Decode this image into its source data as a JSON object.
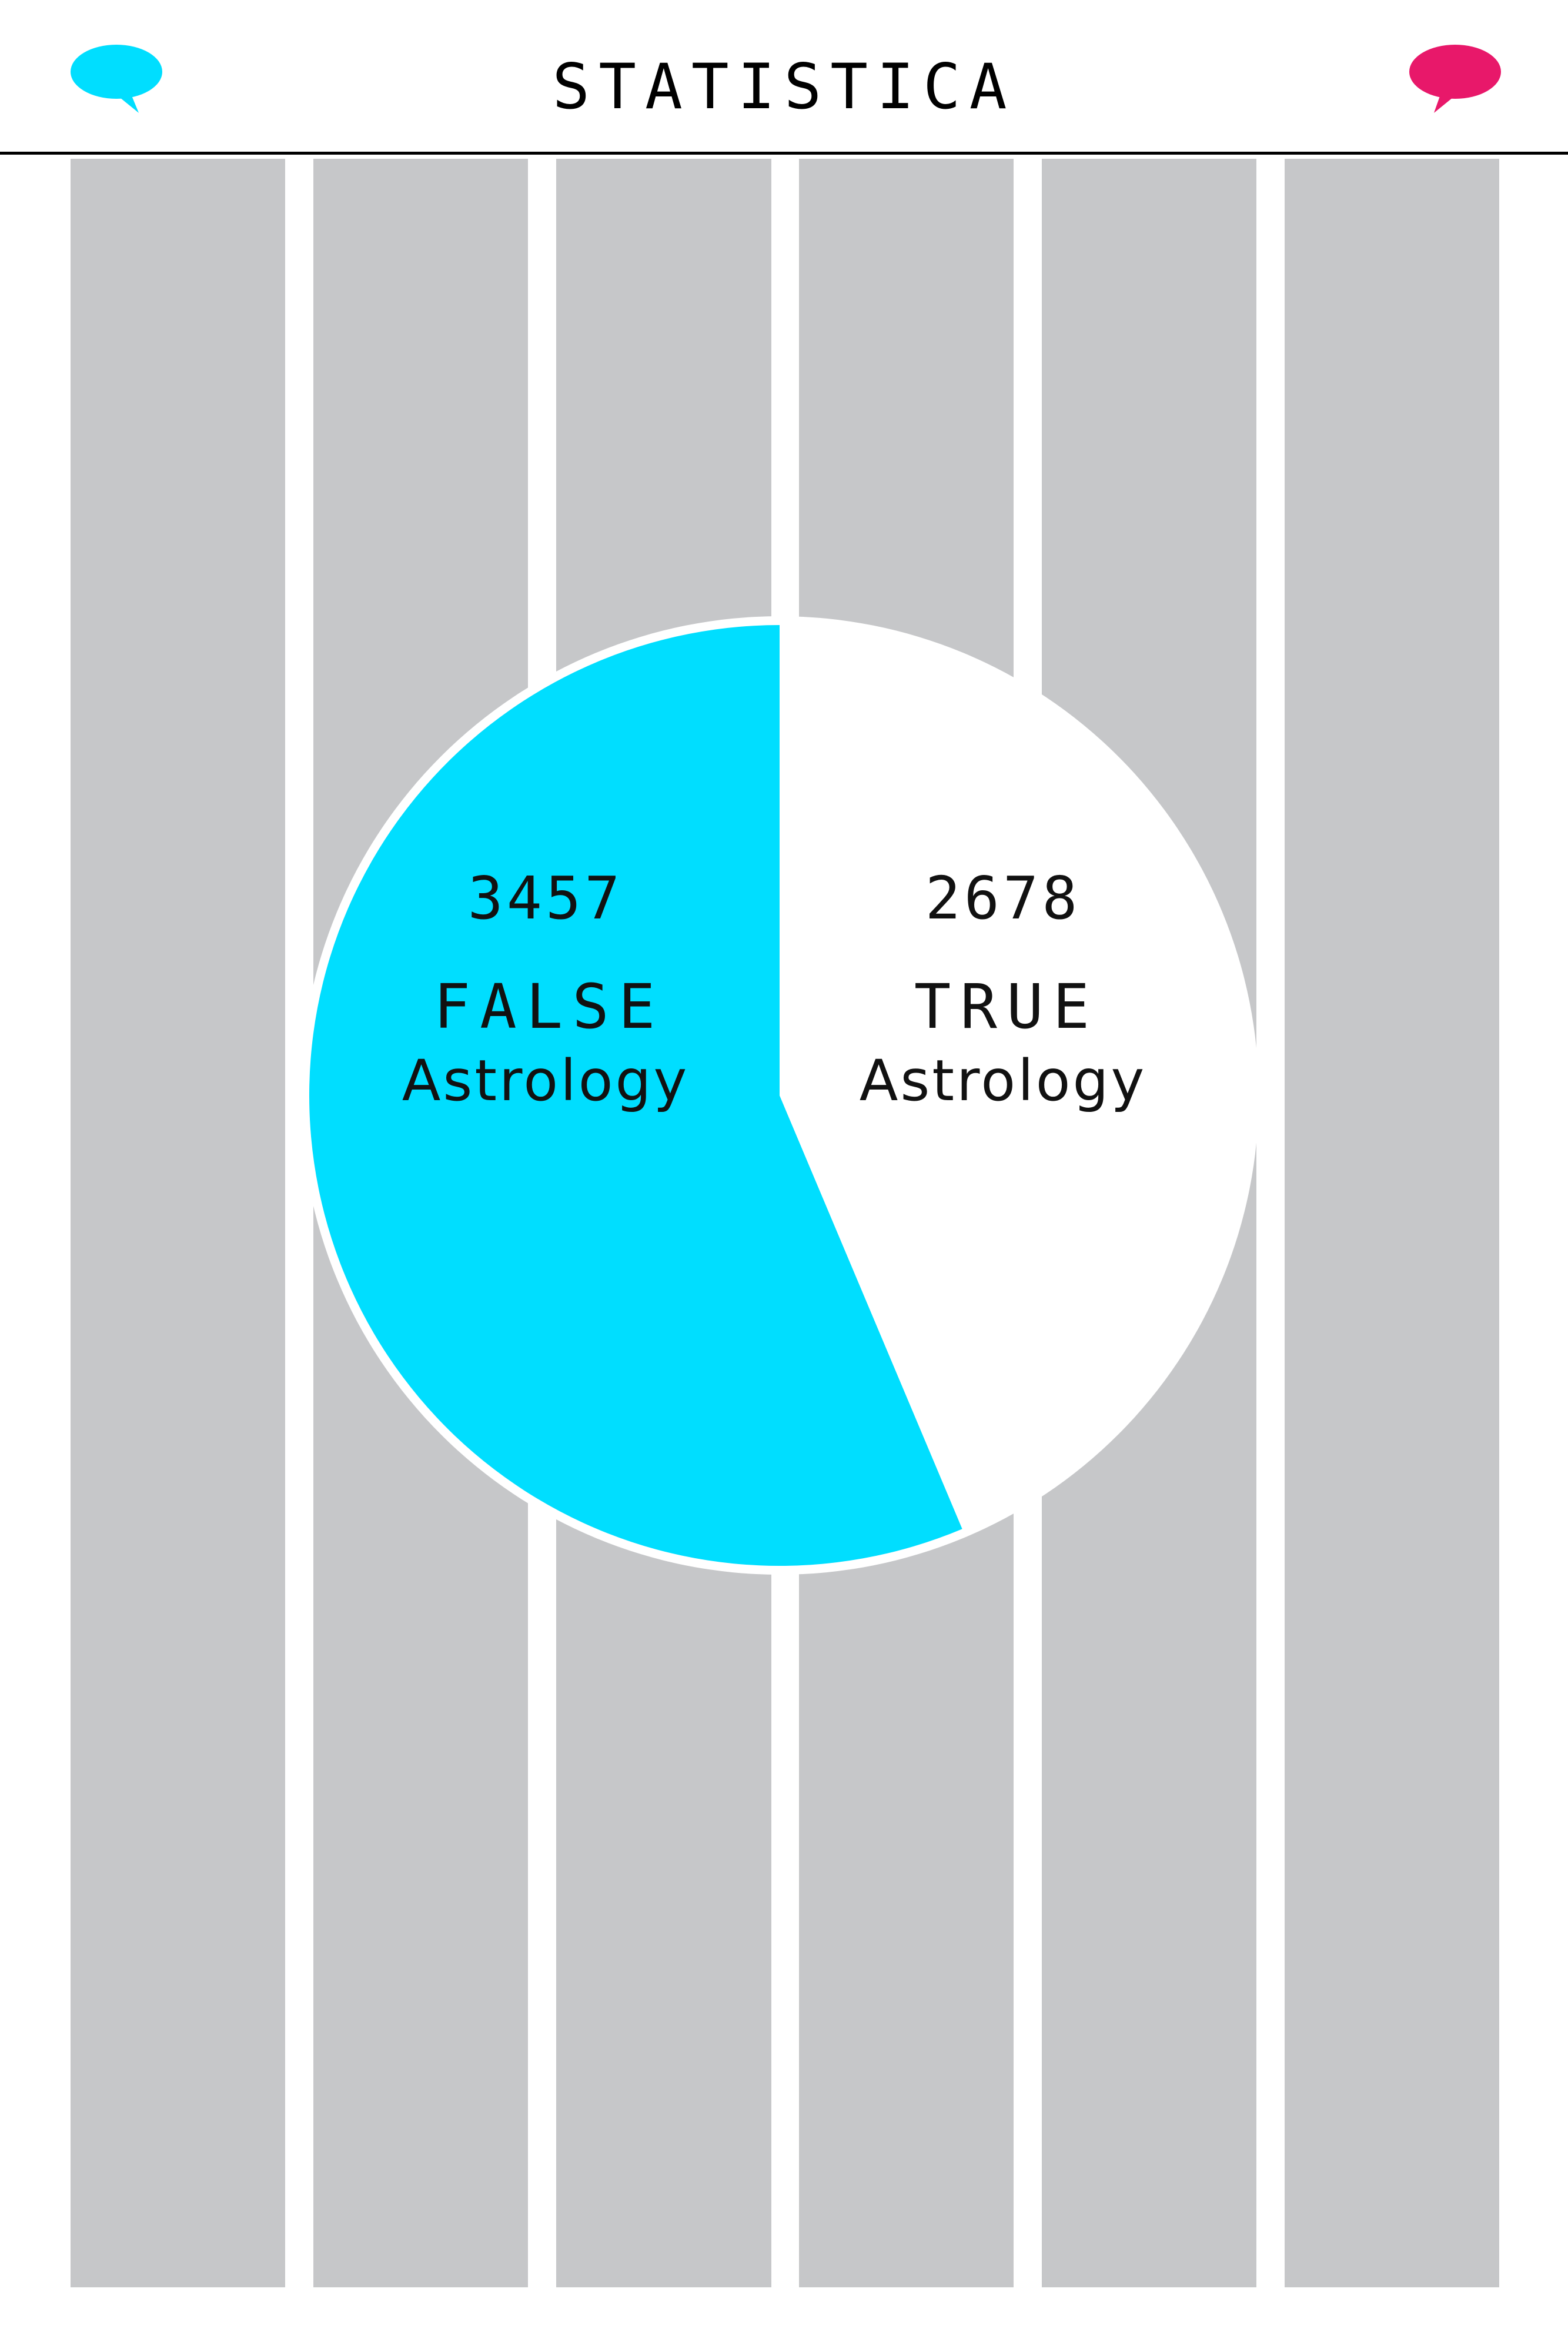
{
  "header": {
    "title": "STATISTICA",
    "left_icon": "speech-bubble-icon",
    "right_icon": "speech-bubble-icon",
    "left_icon_color": "#00deff",
    "right_icon_color": "#e8186a"
  },
  "background": {
    "column_count": 6,
    "column_color": "#c6c7c9"
  },
  "chart_data": {
    "type": "pie",
    "title": "",
    "slices": [
      {
        "label": "FALSE",
        "sublabel": "Astrology",
        "value": 3457,
        "value_text": "3457",
        "color": "#00deff"
      },
      {
        "label": "TRUE",
        "sublabel": "Astrology",
        "value": 2678,
        "value_text": "2678",
        "color": "#ffffff"
      }
    ]
  }
}
